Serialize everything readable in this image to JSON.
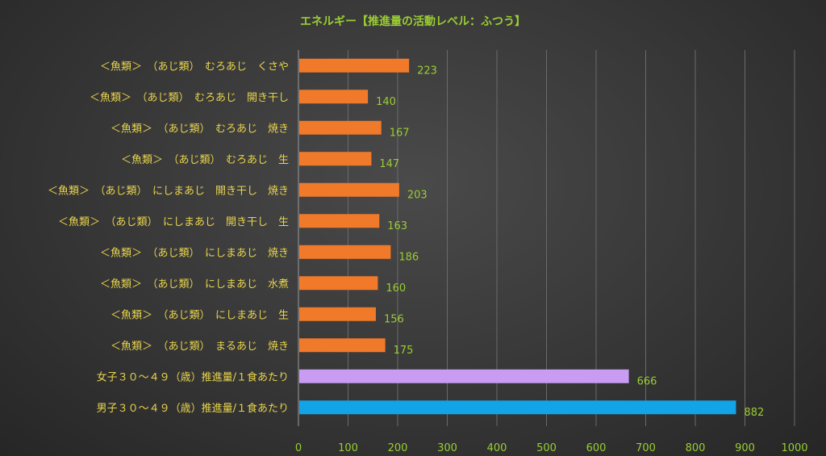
{
  "chart_data": {
    "type": "bar",
    "orientation": "horizontal",
    "title": "エネルギー【推進量の活動レベル：ふつう】",
    "categories": [
      "＜魚類＞　（あじ類）　むろあじ　くさや",
      "＜魚類＞　（あじ類）　むろあじ　開き干し",
      "＜魚類＞　（あじ類）　むろあじ　焼き",
      "＜魚類＞　（あじ類）　むろあじ　生",
      "＜魚類＞　（あじ類）　にしまあじ　開き干し　焼き",
      "＜魚類＞　（あじ類）　にしまあじ　開き干し　生",
      "＜魚類＞　（あじ類）　にしまあじ　焼き",
      "＜魚類＞　（あじ類）　にしまあじ　水煮",
      "＜魚類＞　（あじ類）　にしまあじ　生",
      "＜魚類＞　（あじ類）　まるあじ　焼き",
      "女子３０～４９（歳）推進量/１食あたり",
      "男子３０～４９（歳）推進量/１食あたり"
    ],
    "values": [
      223,
      140,
      167,
      147,
      203,
      163,
      186,
      160,
      156,
      175,
      666,
      882
    ],
    "bar_colors": [
      "#f07a2a",
      "#f07a2a",
      "#f07a2a",
      "#f07a2a",
      "#f07a2a",
      "#f07a2a",
      "#f07a2a",
      "#f07a2a",
      "#f07a2a",
      "#f07a2a",
      "#c79cf2",
      "#12a4e6"
    ],
    "xlim": [
      0,
      1000
    ],
    "xticks": [
      0,
      100,
      200,
      300,
      400,
      500,
      600,
      700,
      800,
      900,
      1000
    ],
    "grid": true,
    "legend": "none",
    "xlabel": "",
    "ylabel": ""
  },
  "colors": {
    "title": "#9acd32",
    "category_label": "#e8d44d",
    "value_label": "#9acd32",
    "tick_label": "#9acd32",
    "grid": "#6a6a6a"
  }
}
